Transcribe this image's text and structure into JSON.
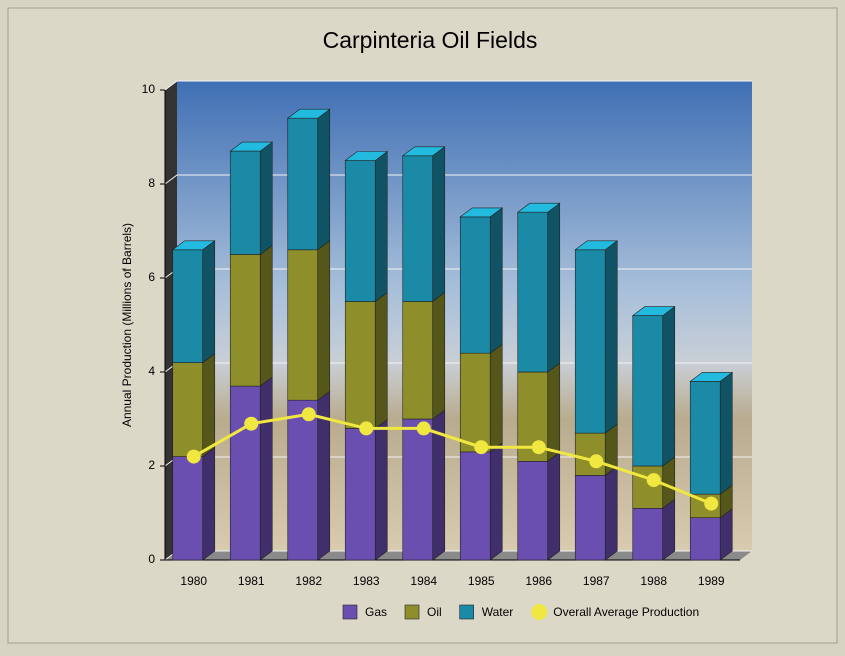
{
  "chart_data": {
    "type": "bar3d_stacked_line",
    "title": "Carpinteria Oil Fields",
    "y_label": "Annual Production (Millions of Barrels)",
    "categories": [
      "1980",
      "1981",
      "1982",
      "1983",
      "1984",
      "1985",
      "1986",
      "1987",
      "1988",
      "1989"
    ],
    "series": [
      {
        "name": "Gas",
        "color": "#6a4fb0",
        "values": [
          2.2,
          3.7,
          3.4,
          2.8,
          3.0,
          2.3,
          2.1,
          1.8,
          1.1,
          0.9
        ]
      },
      {
        "name": "Oil",
        "color": "#8e8f2a",
        "values": [
          2.0,
          2.8,
          3.2,
          2.7,
          2.5,
          2.1,
          1.9,
          0.9,
          0.9,
          0.5
        ]
      },
      {
        "name": "Water",
        "color": "#1a8aa6",
        "values": [
          2.4,
          2.2,
          2.8,
          3.0,
          3.1,
          2.9,
          3.4,
          3.9,
          3.2,
          2.4
        ]
      },
      {
        "name": "Overall Average Production",
        "type": "line",
        "color": "#f0e840",
        "values": [
          2.2,
          2.9,
          3.1,
          2.8,
          2.8,
          2.4,
          2.4,
          2.1,
          1.7,
          1.2
        ]
      }
    ],
    "ylim": [
      0,
      10
    ],
    "yticks": [
      0,
      2,
      4,
      6,
      8,
      10
    ],
    "grid": true
  }
}
